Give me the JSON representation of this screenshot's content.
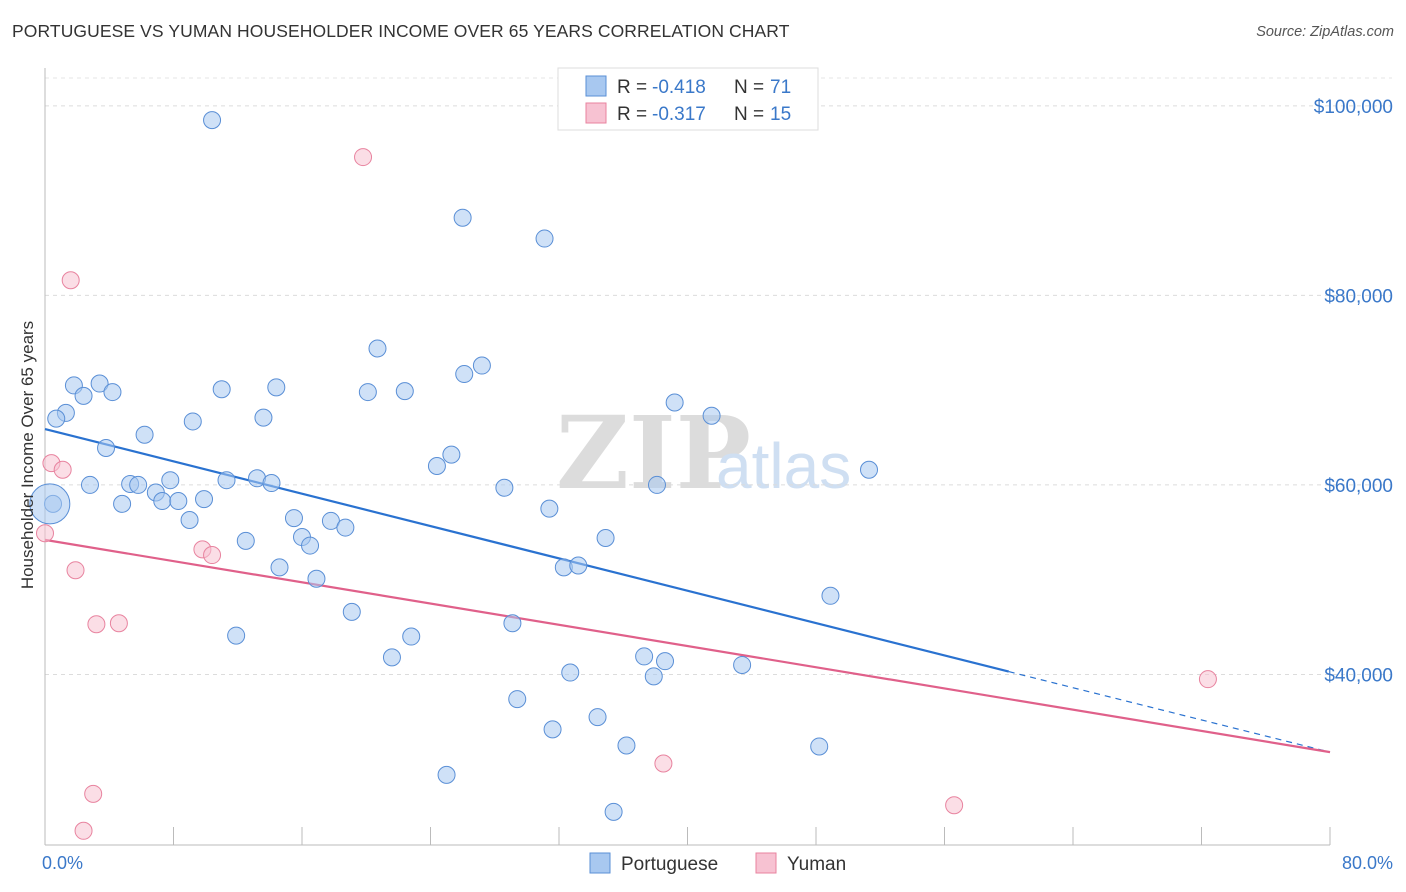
{
  "title": "PORTUGUESE VS YUMAN HOUSEHOLDER INCOME OVER 65 YEARS CORRELATION CHART",
  "source": "Source: ZipAtlas.com",
  "watermark": {
    "zip": "ZIP",
    "atlas": "atlas"
  },
  "legend": {
    "rows": [
      {
        "r_label": "R = ",
        "r_value": "-0.418",
        "n_label": "N = ",
        "n_value": "71"
      },
      {
        "r_label": "R = ",
        "r_value": "-0.317",
        "n_label": "N = ",
        "n_value": "15"
      }
    ]
  },
  "chart_data": {
    "type": "scatter",
    "title": "PORTUGUESE VS YUMAN HOUSEHOLDER INCOME OVER 65 YEARS CORRELATION CHART",
    "xlabel": "",
    "ylabel": "Householder Income Over 65 years",
    "xlim": [
      0,
      80
    ],
    "ylim": [
      22000,
      104000
    ],
    "x_tick_labels": [
      "0.0%",
      "80.0%"
    ],
    "y_ticks": [
      40000,
      60000,
      80000,
      100000
    ],
    "y_tick_labels": [
      "$40,000",
      "$60,000",
      "$80,000",
      "$100,000"
    ],
    "grid": "horizontal dashed",
    "legend_position": "top-center",
    "series": [
      {
        "name": "Portuguese",
        "color": "#a8c8f0",
        "stroke": "#5a8fd6",
        "r": -0.418,
        "n": 71,
        "trend": {
          "x0": 0,
          "y0": 65900,
          "x1": 60,
          "y1": 40300,
          "dash_to_x": 80,
          "dash_to_y": 31800,
          "color": "#2a72d0"
        },
        "points": [
          [
            10.4,
            98500
          ],
          [
            26.0,
            88200
          ],
          [
            31.1,
            86000
          ],
          [
            20.7,
            74400
          ],
          [
            27.2,
            72600
          ],
          [
            26.1,
            71700
          ],
          [
            1.8,
            70500
          ],
          [
            3.4,
            70700
          ],
          [
            2.4,
            69400
          ],
          [
            4.2,
            69800
          ],
          [
            11.0,
            70100
          ],
          [
            14.4,
            70300
          ],
          [
            20.1,
            69800
          ],
          [
            22.4,
            69900
          ],
          [
            39.2,
            68700
          ],
          [
            41.5,
            67300
          ],
          [
            1.3,
            67600
          ],
          [
            0.7,
            67000
          ],
          [
            9.2,
            66700
          ],
          [
            13.6,
            67100
          ],
          [
            6.2,
            65300
          ],
          [
            3.8,
            63900
          ],
          [
            25.3,
            63200
          ],
          [
            24.4,
            62000
          ],
          [
            51.3,
            61600
          ],
          [
            2.8,
            60000
          ],
          [
            5.3,
            60100
          ],
          [
            5.8,
            60000
          ],
          [
            7.8,
            60500
          ],
          [
            11.3,
            60500
          ],
          [
            13.2,
            60700
          ],
          [
            14.1,
            60200
          ],
          [
            38.1,
            60000
          ],
          [
            28.6,
            59700
          ],
          [
            6.9,
            59200
          ],
          [
            7.3,
            58300
          ],
          [
            8.3,
            58300
          ],
          [
            9.9,
            58500
          ],
          [
            4.8,
            58000
          ],
          [
            0.5,
            58000
          ],
          [
            31.4,
            57500
          ],
          [
            9.0,
            56300
          ],
          [
            15.5,
            56500
          ],
          [
            17.8,
            56200
          ],
          [
            18.7,
            55500
          ],
          [
            16.0,
            54500
          ],
          [
            16.5,
            53600
          ],
          [
            12.5,
            54100
          ],
          [
            34.9,
            54400
          ],
          [
            14.6,
            51300
          ],
          [
            32.3,
            51300
          ],
          [
            33.2,
            51500
          ],
          [
            16.9,
            50100
          ],
          [
            48.9,
            48300
          ],
          [
            19.1,
            46600
          ],
          [
            29.1,
            45400
          ],
          [
            11.9,
            44100
          ],
          [
            22.8,
            44000
          ],
          [
            21.6,
            41800
          ],
          [
            37.3,
            41900
          ],
          [
            38.6,
            41400
          ],
          [
            43.4,
            41000
          ],
          [
            32.7,
            40200
          ],
          [
            37.9,
            39800
          ],
          [
            29.4,
            37400
          ],
          [
            34.4,
            35500
          ],
          [
            31.6,
            34200
          ],
          [
            36.2,
            32500
          ],
          [
            48.2,
            32400
          ],
          [
            25.0,
            29400
          ],
          [
            35.4,
            25500
          ]
        ],
        "big_point": [
          0.3,
          58000
        ]
      },
      {
        "name": "Yuman",
        "color": "#f7c2d2",
        "stroke": "#e8839f",
        "r": -0.317,
        "n": 15,
        "trend": {
          "x0": 0,
          "y0": 54200,
          "x1": 80,
          "y1": 31800,
          "color": "#e0608a"
        },
        "points": [
          [
            19.8,
            94600
          ],
          [
            1.6,
            81600
          ],
          [
            0.4,
            62300
          ],
          [
            1.1,
            61600
          ],
          [
            0.0,
            54900
          ],
          [
            9.8,
            53200
          ],
          [
            10.4,
            52600
          ],
          [
            1.9,
            51000
          ],
          [
            3.2,
            45300
          ],
          [
            4.6,
            45400
          ],
          [
            72.4,
            39500
          ],
          [
            38.5,
            30600
          ],
          [
            3.0,
            27400
          ],
          [
            56.6,
            26200
          ],
          [
            2.4,
            23500
          ]
        ]
      }
    ]
  }
}
